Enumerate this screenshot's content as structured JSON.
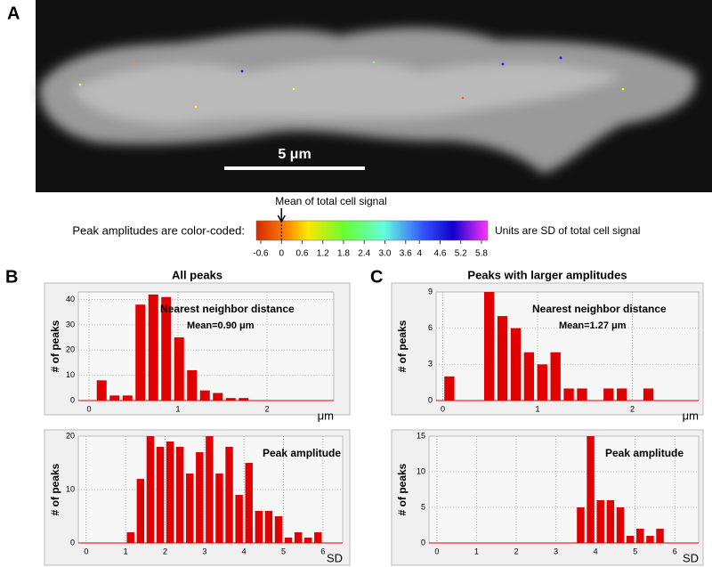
{
  "panels": {
    "a": "A",
    "b": "B",
    "c": "C"
  },
  "micrograph": {
    "scale_bar": "5 μm"
  },
  "colorbar": {
    "intro": "Peak amplitudes are color-coded:",
    "units": "Units are SD of total cell signal",
    "mean_label": "Mean of total cell signal",
    "ticks": [
      -0.6,
      0,
      0.6,
      1.2,
      1.8,
      2.4,
      3.0,
      3.6,
      4,
      4.6,
      5.2,
      5.8
    ],
    "tick_labels": [
      "-0.6",
      "0",
      "0.6",
      "1.2",
      "1.8",
      "2.4",
      "3.0",
      "3.6",
      "4",
      "4.6",
      "5.2",
      "5.8"
    ],
    "lim": [
      -0.6,
      5.8
    ]
  },
  "chart_data": [
    {
      "type": "histogram",
      "title": "All peaks",
      "ylabel": "# of peaks",
      "xlabel": "μm",
      "annotations": [
        "Nearest  neighbor distance",
        "Mean=0.90 μm"
      ],
      "bins": [
        0.07,
        0.215,
        0.36,
        0.505,
        0.65,
        0.795,
        0.94,
        1.085,
        1.23,
        1.375,
        1.52,
        1.665,
        1.81
      ],
      "values": [
        8,
        2,
        2,
        38,
        42,
        41,
        25,
        12,
        4,
        3,
        1,
        1
      ],
      "color": "#e00000",
      "xlim": [
        -0.12,
        2.75
      ],
      "ylim": [
        0,
        43
      ],
      "xticks": [
        0,
        1,
        2
      ],
      "yticks": [
        0,
        10,
        20,
        30,
        40
      ],
      "grid": true
    },
    {
      "type": "histogram",
      "title": "Peaks with larger amplitudes",
      "ylabel": "# of peaks",
      "xlabel": "μm",
      "annotations": [
        "Nearest  neighbor distance",
        "Mean=1.27 μm"
      ],
      "bins": [
        0,
        0.14,
        0.28,
        0.42,
        0.56,
        0.7,
        0.84,
        0.98,
        1.12,
        1.26,
        1.4,
        1.54,
        1.68,
        1.82,
        1.96,
        2.1,
        2.24
      ],
      "values": [
        2,
        0,
        0,
        9,
        7,
        6,
        4,
        3,
        4,
        1,
        1,
        0,
        1,
        1,
        0,
        1
      ],
      "color": "#e00000",
      "xlim": [
        -0.07,
        2.7
      ],
      "ylim": [
        0,
        9
      ],
      "xticks": [
        0,
        1,
        2
      ],
      "yticks": [
        0,
        3,
        6,
        9
      ],
      "grid": true
    },
    {
      "type": "histogram",
      "ylabel": "# of peaks",
      "xlabel": "SD",
      "annotations": [
        "Peak amplitude"
      ],
      "bins": [
        1,
        1.25,
        1.5,
        1.75,
        2,
        2.25,
        2.5,
        2.75,
        3,
        3.25,
        3.5,
        3.75,
        4,
        4.25,
        4.5,
        4.75,
        5,
        5.25,
        5.5,
        5.75,
        6
      ],
      "values": [
        2,
        12,
        20,
        18,
        19,
        18,
        13,
        17,
        20,
        13,
        18,
        9,
        15,
        6,
        6,
        5,
        1,
        2,
        1,
        2
      ],
      "color": "#e00000",
      "xlim": [
        -0.2,
        6.5
      ],
      "ylim": [
        0,
        20
      ],
      "xticks": [
        0,
        1,
        2,
        3,
        4,
        5,
        6
      ],
      "yticks": [
        0,
        10,
        20
      ],
      "grid": true
    },
    {
      "type": "histogram",
      "ylabel": "# of peaks",
      "xlabel": "SD",
      "annotations": [
        "Peak amplitude"
      ],
      "bins": [
        3.5,
        3.75,
        4,
        4.25,
        4.5,
        4.75,
        5,
        5.25,
        5.5,
        5.75
      ],
      "values": [
        5,
        15,
        6,
        6,
        5,
        1,
        2,
        1,
        2
      ],
      "color": "#e00000",
      "xlim": [
        -0.2,
        6.6
      ],
      "ylim": [
        0,
        15
      ],
      "xticks": [
        0,
        1,
        2,
        3,
        4,
        5,
        6
      ],
      "yticks": [
        0,
        5,
        10,
        15
      ],
      "grid": true
    }
  ]
}
